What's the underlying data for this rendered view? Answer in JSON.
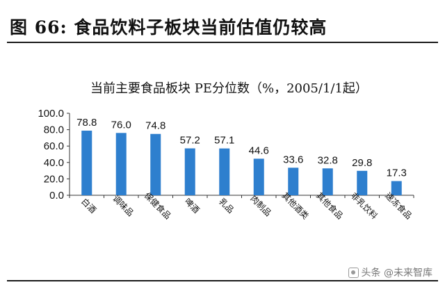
{
  "figure": {
    "title": "图  66:  食品饮料子板块当前估值仍较高"
  },
  "watermark": {
    "text": "头条 @未来智库",
    "icon": "toutiao-logo-icon"
  },
  "chart_data": {
    "type": "bar",
    "title": "当前主要食品板块  PE分位数（%，2005/1/1起）",
    "categories": [
      "白酒",
      "调味品",
      "保健食品",
      "啤酒",
      "乳品",
      "肉制品",
      "其他酒类",
      "其他食品",
      "非乳饮料",
      "速冻食品"
    ],
    "values": [
      78.8,
      76.0,
      74.8,
      57.2,
      57.1,
      44.6,
      33.6,
      32.8,
      29.8,
      17.3
    ],
    "value_labels": [
      "78.8",
      "76.0",
      "74.8",
      "57.2",
      "57.1",
      "44.6",
      "33.6",
      "32.8",
      "29.8",
      "17.3"
    ],
    "ylim": [
      0,
      100
    ],
    "yticks": [
      "0.0",
      "20.0",
      "40.0",
      "60.0",
      "80.0",
      "100.0"
    ],
    "xlabel": "",
    "ylabel": "",
    "bar_color": "#2e7fce",
    "grid": false,
    "legend": "none"
  }
}
